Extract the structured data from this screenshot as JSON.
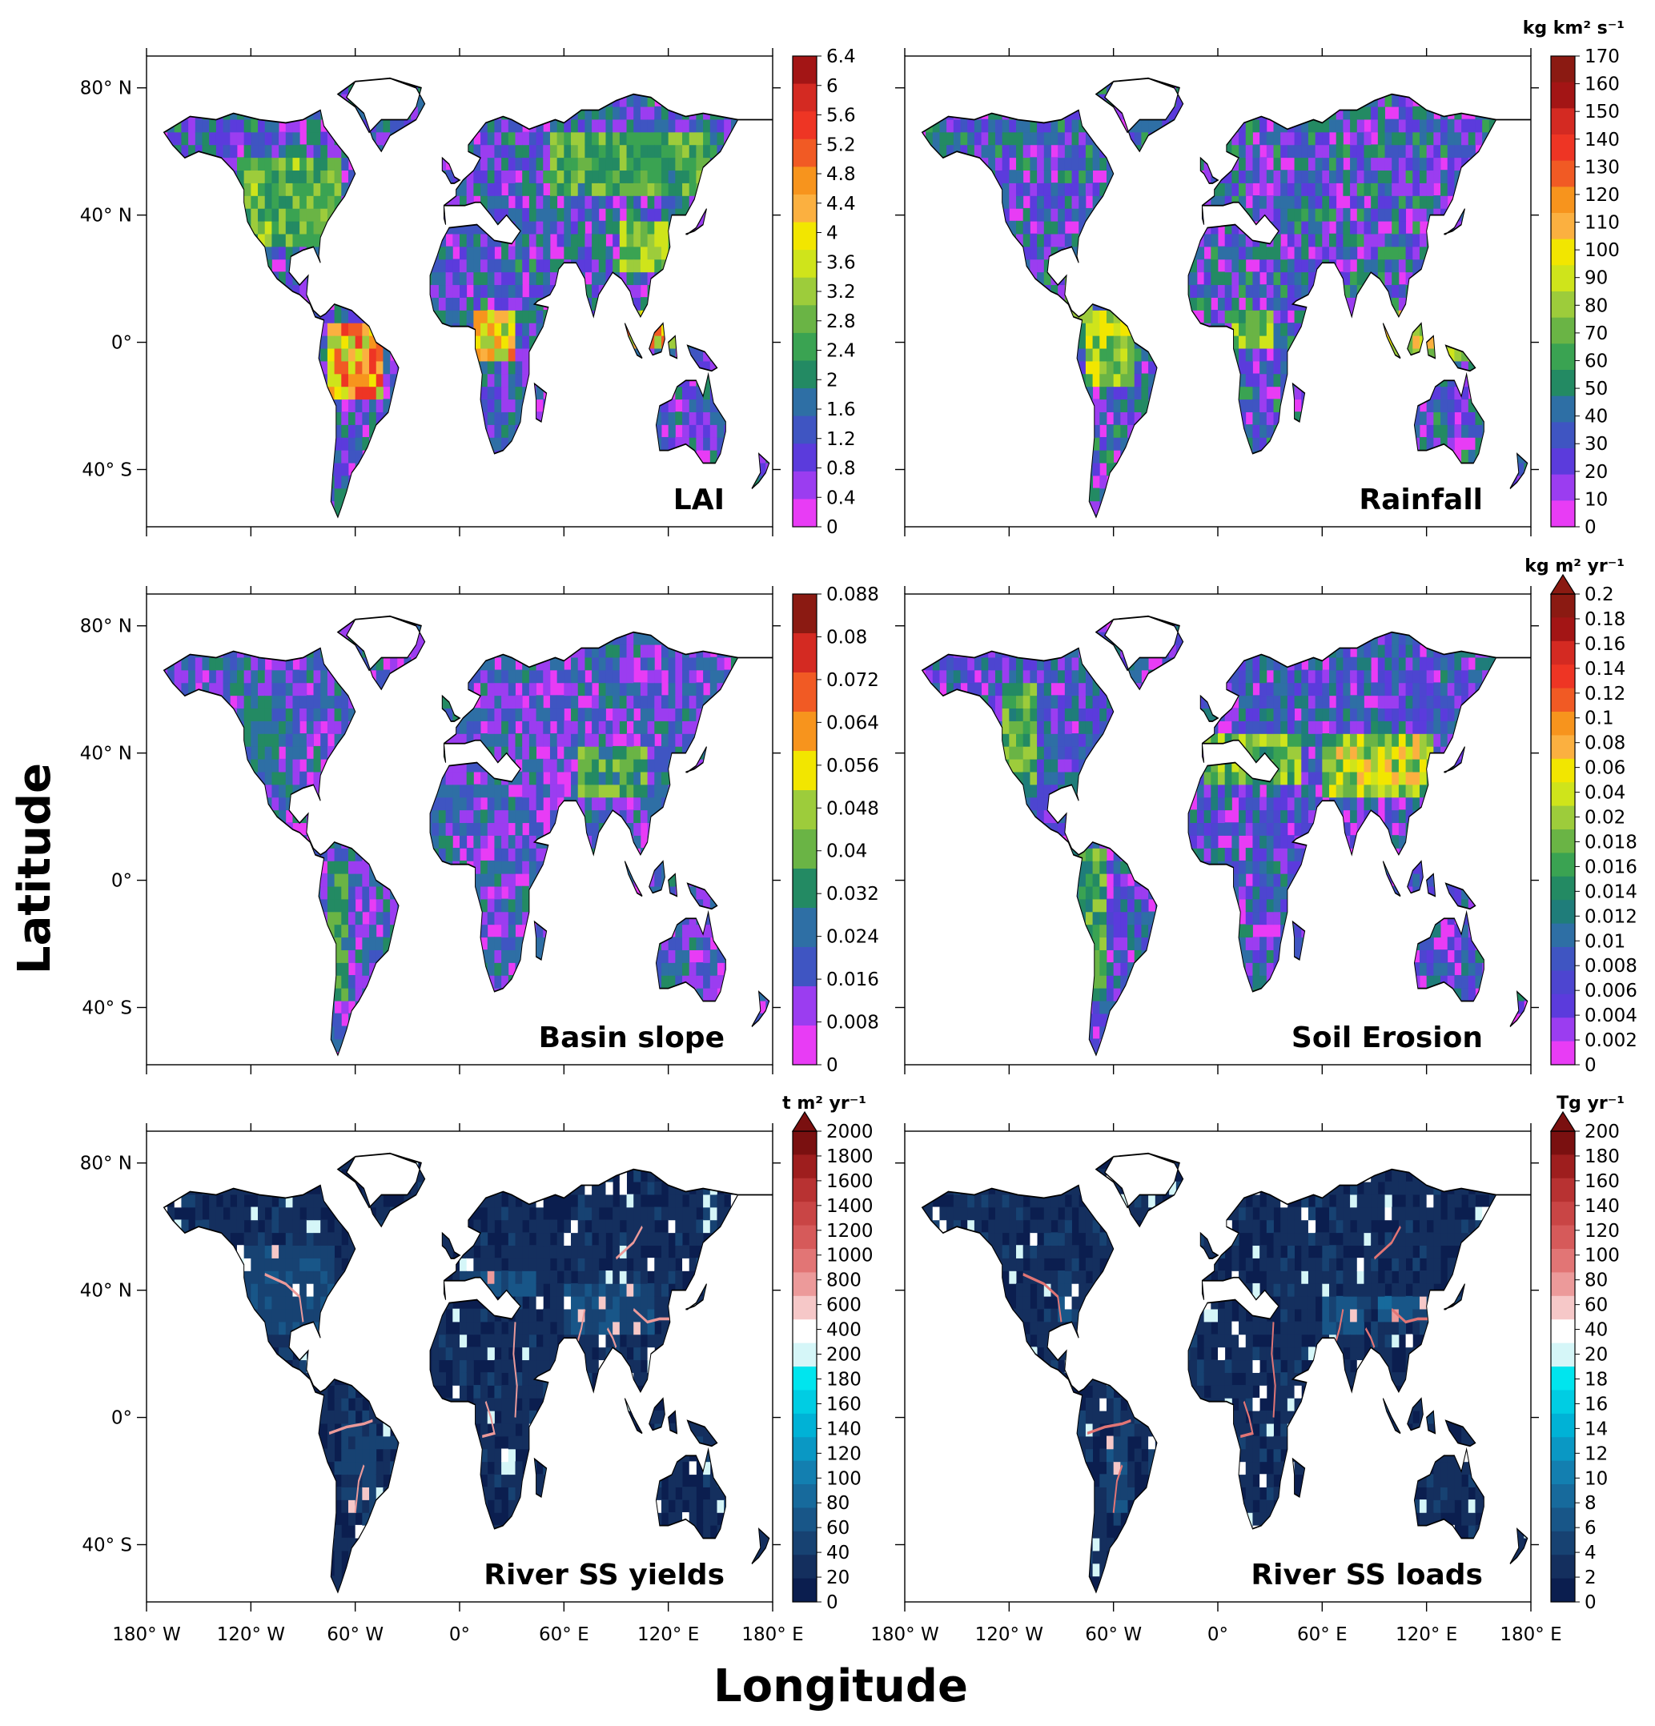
{
  "axes": {
    "xlabel": "Longitude",
    "ylabel": "Latitude",
    "lon_ticks": [
      "180° W",
      "120° W",
      "60° W",
      "0°",
      "60° E",
      "120° E",
      "180° E"
    ],
    "lat_ticks": [
      "80° N",
      "40° N",
      "0°",
      "40° S"
    ]
  },
  "panels": [
    {
      "label": "LAI",
      "unit": "",
      "extend_arrow": false,
      "colorbar_ticks": [
        "6.4",
        "6",
        "5.6",
        "5.2",
        "4.8",
        "4.4",
        "4",
        "3.6",
        "3.2",
        "2.8",
        "2.4",
        "2",
        "1.6",
        "1.2",
        "0.8",
        "0.4",
        "0"
      ],
      "colors": [
        "#a31515",
        "#d42a22",
        "#ee3524",
        "#f15a24",
        "#f7941d",
        "#fbb040",
        "#f2e600",
        "#cfe41b",
        "#9dcc3b",
        "#6ab445",
        "#3aa352",
        "#238a63",
        "#2e6fa5",
        "#3f55c2",
        "#5b3bdc",
        "#9b3df0",
        "#e83cf5"
      ]
    },
    {
      "label": "Rainfall",
      "unit": "kg km² s⁻¹",
      "extend_arrow": false,
      "colorbar_ticks": [
        "170",
        "160",
        "150",
        "140",
        "130",
        "120",
        "110",
        "100",
        "90",
        "80",
        "70",
        "60",
        "50",
        "40",
        "30",
        "20",
        "10",
        "0"
      ],
      "colors": [
        "#8b1a12",
        "#a31515",
        "#d42a22",
        "#ee3524",
        "#f15a24",
        "#f7941d",
        "#fbb040",
        "#f2e600",
        "#cfe41b",
        "#9dcc3b",
        "#6ab445",
        "#3aa352",
        "#238a63",
        "#2e6fa5",
        "#3f55c2",
        "#5b3bdc",
        "#9b3df0",
        "#e83cf5"
      ]
    },
    {
      "label": "Basin slope",
      "unit": "",
      "extend_arrow": false,
      "colorbar_ticks": [
        "0.088",
        "0.08",
        "0.072",
        "0.064",
        "0.056",
        "0.048",
        "0.04",
        "0.032",
        "0.024",
        "0.016",
        "0.008",
        "0"
      ],
      "colors": [
        "#8b1a12",
        "#d42a22",
        "#f15a24",
        "#f7941d",
        "#f2e600",
        "#9dcc3b",
        "#6ab445",
        "#238a63",
        "#2e6fa5",
        "#3f55c2",
        "#9b3df0",
        "#e83cf5"
      ]
    },
    {
      "label": "Soil Erosion",
      "unit": "kg m² yr⁻¹",
      "extend_arrow": true,
      "colorbar_ticks": [
        "0.2",
        "0.18",
        "0.16",
        "0.14",
        "0.12",
        "0.1",
        "0.08",
        "0.06",
        "0.04",
        "0.02",
        "0.018",
        "0.016",
        "0.014",
        "0.012",
        "0.01",
        "0.008",
        "0.006",
        "0.004",
        "0.002",
        "0"
      ],
      "colors": [
        "#8b1a12",
        "#a31515",
        "#d42a22",
        "#ee3524",
        "#f15a24",
        "#f7941d",
        "#fbb040",
        "#f2e600",
        "#cfe41b",
        "#9dcc3b",
        "#6ab445",
        "#3aa352",
        "#238a63",
        "#1f7d7a",
        "#2e6fa5",
        "#3f55c2",
        "#4d45d0",
        "#5b3bdc",
        "#9b3df0",
        "#e83cf5"
      ]
    },
    {
      "label": "River SS yields",
      "unit": "t m² yr⁻¹",
      "extend_arrow": true,
      "colorbar_ticks": [
        "2000",
        "1800",
        "1600",
        "1400",
        "1200",
        "1000",
        "800",
        "600",
        "400",
        "200",
        "180",
        "160",
        "140",
        "120",
        "100",
        "80",
        "60",
        "40",
        "20",
        "0"
      ],
      "colors": [
        "#7a1010",
        "#9e1e1e",
        "#b83232",
        "#c94545",
        "#d65a5a",
        "#e27575",
        "#ec9a9a",
        "#f6c8c8",
        "#ffffff",
        "#d5f6f8",
        "#00e5ee",
        "#00cde3",
        "#00b2d6",
        "#0a98c4",
        "#137fb0",
        "#176a9c",
        "#185688",
        "#174272",
        "#142f5e",
        "#0b1e4f"
      ]
    },
    {
      "label": "River SS loads",
      "unit": "Tg yr⁻¹",
      "extend_arrow": true,
      "colorbar_ticks": [
        "200",
        "180",
        "160",
        "140",
        "120",
        "100",
        "80",
        "60",
        "40",
        "20",
        "18",
        "16",
        "14",
        "12",
        "10",
        "8",
        "6",
        "4",
        "2",
        "0"
      ],
      "colors": [
        "#7a1010",
        "#9e1e1e",
        "#b83232",
        "#c94545",
        "#d65a5a",
        "#e27575",
        "#ec9a9a",
        "#f6c8c8",
        "#ffffff",
        "#d5f6f8",
        "#00e5ee",
        "#00cde3",
        "#00b2d6",
        "#0a98c4",
        "#137fb0",
        "#176a9c",
        "#185688",
        "#174272",
        "#142f5e",
        "#0b1e4f"
      ]
    }
  ]
}
